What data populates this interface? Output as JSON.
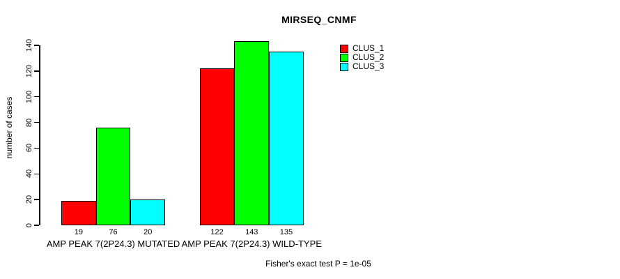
{
  "chart_data": {
    "type": "bar",
    "title": "MIRSEQ_CNMF",
    "ylabel": "number of cases",
    "xlabel": "",
    "ylim": [
      0,
      140
    ],
    "yticks": [
      0,
      20,
      40,
      60,
      80,
      100,
      120,
      140
    ],
    "grid": false,
    "legend_position": "top-right",
    "categories": [
      "AMP PEAK 7(2P24.3) MUTATED",
      "AMP PEAK 7(2P24.3) WILD-TYPE"
    ],
    "series": [
      {
        "name": "CLUS_1",
        "color": "#ff0000",
        "values": [
          19,
          122
        ]
      },
      {
        "name": "CLUS_2",
        "color": "#00ff00",
        "values": [
          76,
          143
        ]
      },
      {
        "name": "CLUS_3",
        "color": "#00ffff",
        "values": [
          20,
          135
        ]
      }
    ],
    "bar_value_labels": [
      [
        19,
        76,
        20
      ],
      [
        122,
        143,
        135
      ]
    ],
    "annotation": "Fisher's exact test P = 1e-05"
  }
}
